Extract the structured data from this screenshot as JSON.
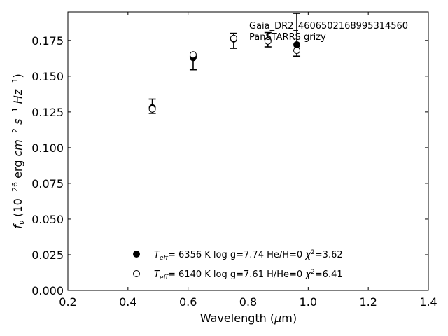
{
  "chart_data": {
    "type": "scatter",
    "title": "",
    "xlabel": "Wavelength (μm)",
    "ylabel": "f_ν (10^-26 erg cm^-2 s^-1 Hz^-1)",
    "xlim": [
      0.2,
      1.4
    ],
    "ylim": [
      0.0,
      0.195
    ],
    "xticks": [
      "0.2",
      "0.4",
      "0.6",
      "0.8",
      "1.0",
      "1.2",
      "1.4"
    ],
    "yticks": [
      "0.000",
      "0.025",
      "0.050",
      "0.075",
      "0.100",
      "0.125",
      "0.150",
      "0.175"
    ],
    "annotation": {
      "line1": "Gaia_DR2_4606502168995314560",
      "line2": "PanSTARRS grizy"
    },
    "observed": {
      "x": [
        0.481,
        0.617,
        0.752,
        0.866,
        0.962
      ],
      "y": [
        0.1275,
        0.1625,
        0.1755,
        0.1755,
        0.172
      ],
      "yerr_low": [
        0.0035,
        0.008,
        0.006,
        0.005,
        0.008
      ],
      "yerr_high": [
        0.0065,
        0.0015,
        0.0045,
        0.005,
        0.022
      ]
    },
    "series": [
      {
        "name": "T_eff= 6356 K log g=7.74 He/H=0 χ²=3.62",
        "marker": "filled",
        "x": [
          0.481,
          0.617,
          0.752,
          0.866,
          0.962
        ],
        "y": [
          0.128,
          0.163,
          0.176,
          0.175,
          0.172
        ]
      },
      {
        "name": "T_eff= 6140 K log g=7.61 H/He=0 χ²=6.41",
        "marker": "open",
        "x": [
          0.481,
          0.617,
          0.752,
          0.866,
          0.962
        ],
        "y": [
          0.127,
          0.165,
          0.1765,
          0.1745,
          0.168
        ]
      }
    ],
    "legend": {
      "placement": "bottom-center",
      "entries": [
        {
          "teff": "6356 K",
          "logg": "log g=7.74",
          "comp": "He/H=0",
          "chi": "=3.62"
        },
        {
          "teff": "6140 K",
          "logg": "log g=7.61",
          "comp": "H/He=0",
          "chi": "=6.41"
        }
      ]
    },
    "colors": {
      "marker": "#000000",
      "axis": "#000000",
      "background": "#ffffff"
    }
  }
}
